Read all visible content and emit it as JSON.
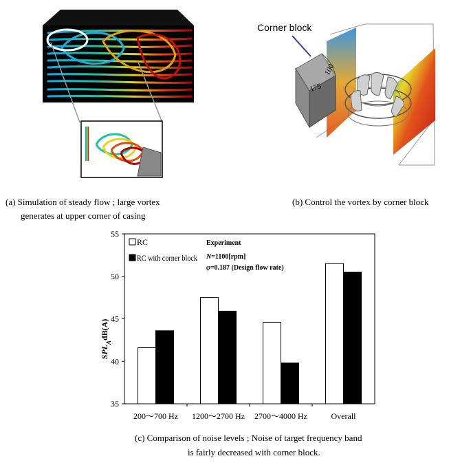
{
  "figure_a": {
    "caption_line1": "(a) Simulation of steady flow ; large vortex",
    "caption_line2": "generates at upper corner of casing"
  },
  "figure_b": {
    "label_corner_block": "Corner block",
    "dim_175": "175",
    "dim_100": "100",
    "caption": "(b) Control the vortex by corner block"
  },
  "figure_c": {
    "caption_line1": "(c) Comparison of noise levels ; Noise of target frequency band",
    "caption_line2": "is fairly decreased with corner block."
  },
  "chart_data": {
    "type": "bar",
    "categories": [
      "200～700 Hz",
      "1200～2700 Hz",
      "2700～4000 Hz",
      "Overall"
    ],
    "series": [
      {
        "name": "RC",
        "color": "#ffffff",
        "values": [
          41.6,
          47.5,
          44.6,
          51.5
        ]
      },
      {
        "name": "RC with corner block",
        "color": "#000000",
        "values": [
          43.6,
          45.9,
          39.8,
          50.5
        ]
      }
    ],
    "ylabel_main": "SPL",
    "ylabel_sub": "A",
    "ylabel_rest": "dB(A)",
    "ylim": [
      35,
      55
    ],
    "yticks": [
      35,
      40,
      45,
      50,
      55
    ],
    "legend_position": "top-left",
    "annotation": {
      "title": "Experiment",
      "line1_sym": "N",
      "line1_rest": "=1100[rpm]",
      "line2_sym": "φ",
      "line2_rest": "=0.187 (Design flow rate)"
    }
  }
}
